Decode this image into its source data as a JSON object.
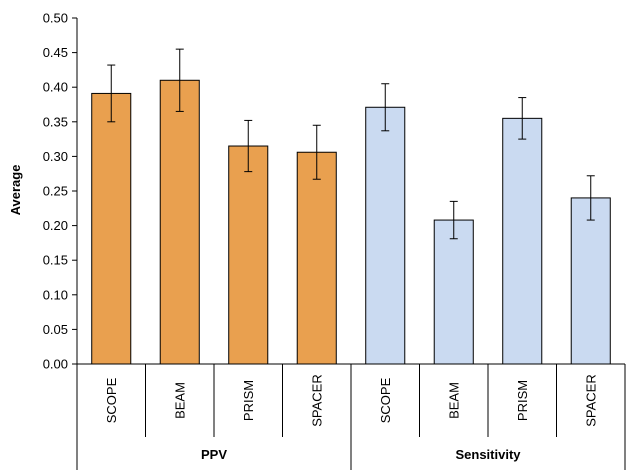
{
  "chart_data": {
    "type": "bar",
    "title": "",
    "xlabel": "",
    "ylabel": "Average",
    "ylim": [
      0,
      0.5
    ],
    "yticks": [
      "0.00",
      "0.05",
      "0.10",
      "0.15",
      "0.20",
      "0.25",
      "0.30",
      "0.35",
      "0.40",
      "0.45",
      "0.50"
    ],
    "grid": false,
    "groups": [
      {
        "name": "PPV",
        "color": "#E9A04F",
        "categories": [
          "SCOPE",
          "BEAM",
          "PRISM",
          "SPACER"
        ],
        "values": [
          0.391,
          0.41,
          0.315,
          0.306
        ],
        "errors": [
          0.041,
          0.045,
          0.037,
          0.039
        ]
      },
      {
        "name": "Sensitivity",
        "color": "#CADAF1",
        "categories": [
          "SCOPE",
          "BEAM",
          "PRISM",
          "SPACER"
        ],
        "values": [
          0.371,
          0.208,
          0.355,
          0.24
        ],
        "errors": [
          0.034,
          0.027,
          0.03,
          0.032
        ]
      }
    ]
  }
}
